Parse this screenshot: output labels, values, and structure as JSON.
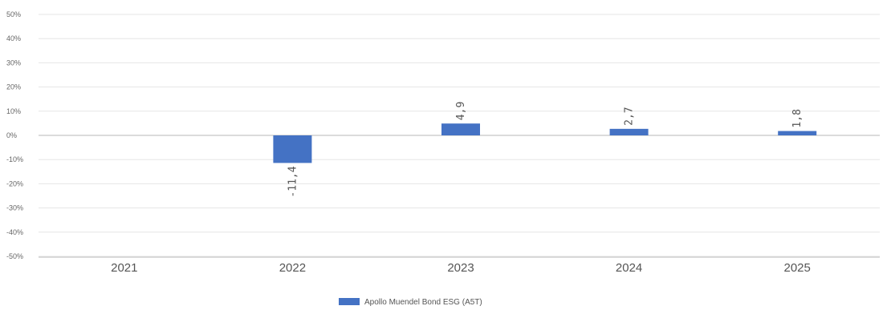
{
  "chart_data": {
    "type": "bar",
    "categories": [
      "2021",
      "2022",
      "2023",
      "2024",
      "2025"
    ],
    "series": [
      {
        "name": "Apollo Muendel Bond ESG (A5T)",
        "values": [
          null,
          -11.4,
          4.9,
          2.7,
          1.8
        ],
        "labels": [
          "",
          "-11,4",
          "4,9",
          "2,7",
          "1,8"
        ],
        "color": "#4472C4"
      }
    ],
    "ylim": [
      -50,
      50
    ],
    "yticks": [
      50,
      40,
      30,
      20,
      10,
      0,
      -10,
      -20,
      -30,
      -40,
      -50
    ],
    "ytick_labels": [
      "50%",
      "40%",
      "30%",
      "20%",
      "10%",
      "0%",
      "-10%",
      "-20%",
      "-30%",
      "-40%",
      "-50%"
    ],
    "grid": true,
    "legend": "bottom-center"
  }
}
